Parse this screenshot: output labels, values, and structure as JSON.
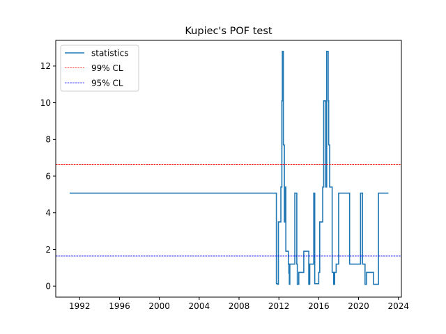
{
  "chart_data": {
    "type": "line",
    "title": "Kupiec's POF test",
    "xlabel": "",
    "ylabel": "",
    "xlim": [
      1989.6,
      2024.3
    ],
    "ylim": [
      -0.6,
      13.4
    ],
    "x_ticks": [
      "1992",
      "1996",
      "2000",
      "2004",
      "2008",
      "2012",
      "2016",
      "2020",
      "2024"
    ],
    "x_tick_values": [
      1992,
      1996,
      2000,
      2004,
      2008,
      2012,
      2016,
      2020,
      2024
    ],
    "y_ticks": [
      "0",
      "2",
      "4",
      "6",
      "8",
      "10",
      "12"
    ],
    "y_tick_values": [
      0,
      2,
      4,
      6,
      8,
      10,
      12
    ],
    "grid": false,
    "legend_position": "top-left",
    "series": [
      {
        "name": "statistics",
        "color": "#1f77b4",
        "style": "solid",
        "step": true,
        "points": [
          [
            1991.0,
            5.07
          ],
          [
            2011.7,
            5.07
          ],
          [
            2011.75,
            0.13
          ],
          [
            2011.9,
            0.1
          ],
          [
            2011.95,
            3.5
          ],
          [
            2012.2,
            5.4
          ],
          [
            2012.3,
            10.1
          ],
          [
            2012.35,
            12.8
          ],
          [
            2012.45,
            7.7
          ],
          [
            2012.55,
            3.5
          ],
          [
            2012.6,
            5.4
          ],
          [
            2012.7,
            1.9
          ],
          [
            2012.95,
            1.2
          ],
          [
            2013.0,
            0.7
          ],
          [
            2013.05,
            0.1
          ],
          [
            2013.1,
            1.2
          ],
          [
            2013.6,
            5.07
          ],
          [
            2013.8,
            1.2
          ],
          [
            2013.85,
            0.1
          ],
          [
            2014.0,
            0.75
          ],
          [
            2014.5,
            1.9
          ],
          [
            2015.0,
            0.1
          ],
          [
            2015.1,
            1.2
          ],
          [
            2015.5,
            5.07
          ],
          [
            2015.6,
            0.13
          ],
          [
            2016.0,
            0.75
          ],
          [
            2016.1,
            3.5
          ],
          [
            2016.4,
            5.4
          ],
          [
            2016.5,
            10.1
          ],
          [
            2016.7,
            5.4
          ],
          [
            2016.8,
            12.8
          ],
          [
            2016.95,
            10.1
          ],
          [
            2017.0,
            7.7
          ],
          [
            2017.1,
            5.4
          ],
          [
            2017.35,
            0.75
          ],
          [
            2017.5,
            0.1
          ],
          [
            2017.6,
            0.75
          ],
          [
            2017.75,
            1.2
          ],
          [
            2018.0,
            5.07
          ],
          [
            2019.1,
            1.2
          ],
          [
            2020.2,
            5.07
          ],
          [
            2020.4,
            1.2
          ],
          [
            2020.65,
            0.1
          ],
          [
            2020.8,
            0.75
          ],
          [
            2021.5,
            0.1
          ],
          [
            2022.0,
            5.07
          ],
          [
            2023.0,
            5.07
          ]
        ]
      },
      {
        "name": "99% CL",
        "color": "#ff0000",
        "style": "dashed",
        "horizontal": true,
        "y": 6.63
      },
      {
        "name": "95% CL",
        "color": "#0000ff",
        "style": "dashed",
        "horizontal": true,
        "y": 1.64
      }
    ]
  }
}
